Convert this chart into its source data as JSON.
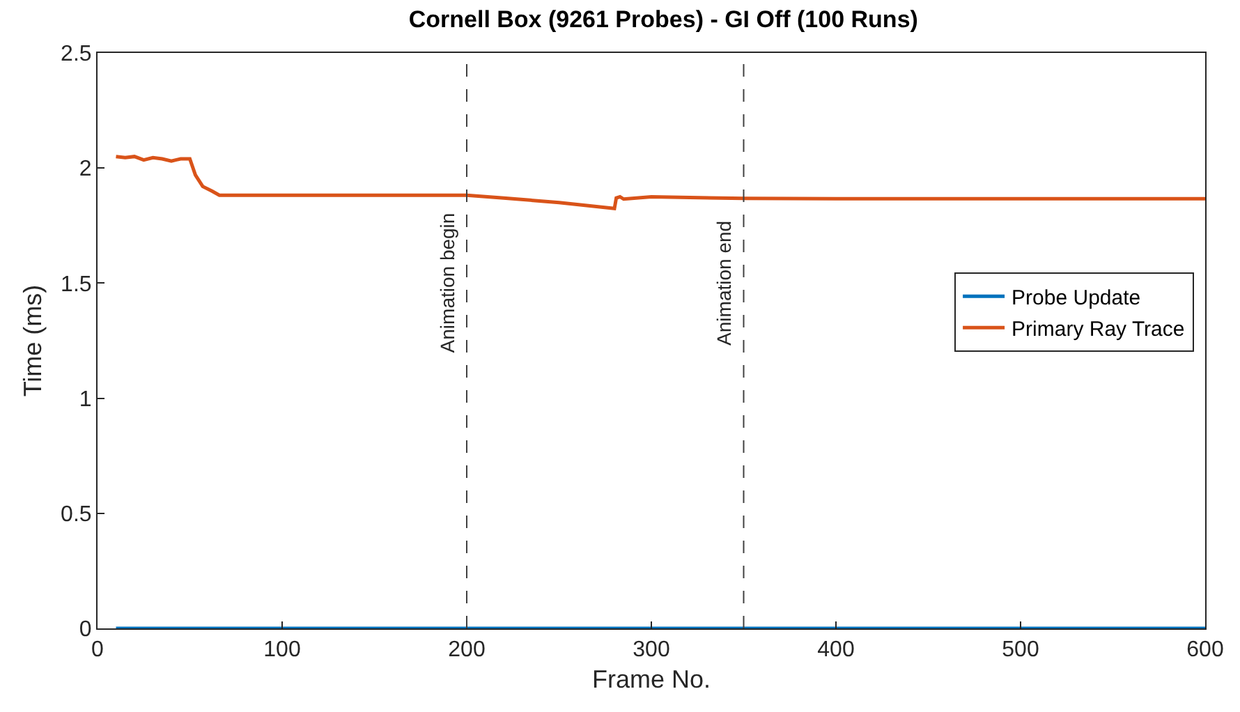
{
  "chart_data": {
    "type": "line",
    "title": "Cornell Box (9261 Probes) - GI Off (100 Runs)",
    "xlabel": "Frame No.",
    "ylabel": "Time (ms)",
    "xlim": [
      0,
      600
    ],
    "xticks": [
      0,
      100,
      200,
      300,
      400,
      500,
      600
    ],
    "ylim": [
      0,
      2.5
    ],
    "yticks": [
      0,
      0.5,
      1,
      1.5,
      2,
      2.5
    ],
    "grid": false,
    "legend": "right",
    "marker": "none",
    "line_style": "solid",
    "series": [
      {
        "name": "Probe Update",
        "color": "#0072bd",
        "x": [
          10,
          600
        ],
        "values": [
          0,
          0
        ]
      },
      {
        "name": "Primary Ray Trace",
        "color": "#d95319",
        "x": [
          10,
          15,
          20,
          25,
          30,
          35,
          40,
          45,
          50,
          53,
          57,
          62,
          66,
          100,
          150,
          200,
          220,
          250,
          280,
          281,
          283,
          285,
          300,
          350,
          400,
          500,
          600
        ],
        "values": [
          2.05,
          2.045,
          2.05,
          2.035,
          2.045,
          2.04,
          2.03,
          2.04,
          2.04,
          1.97,
          1.92,
          1.9,
          1.882,
          1.882,
          1.882,
          1.882,
          1.87,
          1.85,
          1.824,
          1.87,
          1.875,
          1.865,
          1.875,
          1.868,
          1.867,
          1.867,
          1.867
        ]
      }
    ],
    "ref_lines": [
      {
        "axis": "x",
        "value": 200,
        "label": "Animation begin",
        "color": "#404040",
        "line_style": "dashed"
      },
      {
        "axis": "x",
        "value": 350,
        "label": "Animation end",
        "color": "#404040",
        "line_style": "dashed"
      }
    ]
  }
}
